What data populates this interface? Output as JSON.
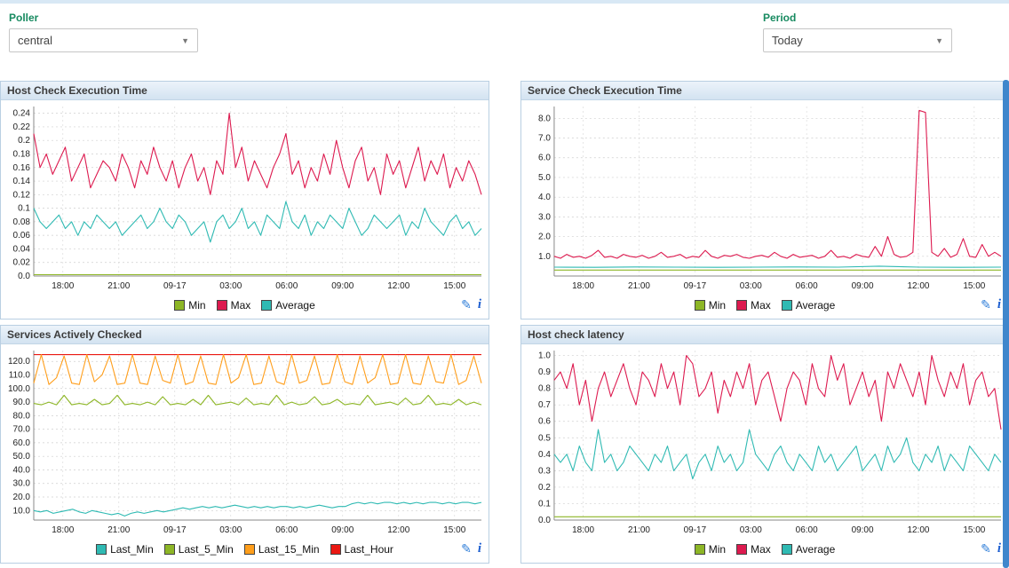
{
  "filters": {
    "poller_label": "Poller",
    "poller_value": "central",
    "period_label": "Period",
    "period_value": "Today"
  },
  "icons": {
    "edit": "✎",
    "info": "i"
  },
  "xticks": [
    {
      "pos": 0.065,
      "l": "18:00"
    },
    {
      "pos": 0.19,
      "l": "21:00"
    },
    {
      "pos": 0.315,
      "l": "09-17"
    },
    {
      "pos": 0.44,
      "l": "03:00"
    },
    {
      "pos": 0.565,
      "l": "06:00"
    },
    {
      "pos": 0.69,
      "l": "09:00"
    },
    {
      "pos": 0.815,
      "l": "12:00"
    },
    {
      "pos": 0.94,
      "l": "15:00"
    }
  ],
  "charts": [
    {
      "title": "Host Check Execution Time",
      "chart_data": {
        "type": "line",
        "ylim": [
          0,
          0.25
        ],
        "yticks": [
          {
            "v": 0,
            "l": "0.0"
          },
          {
            "v": 0.02,
            "l": "0.02"
          },
          {
            "v": 0.04,
            "l": "0.04"
          },
          {
            "v": 0.06,
            "l": "0.06"
          },
          {
            "v": 0.08,
            "l": "0.08"
          },
          {
            "v": 0.1,
            "l": "0.1"
          },
          {
            "v": 0.12,
            "l": "0.12"
          },
          {
            "v": 0.14,
            "l": "0.14"
          },
          {
            "v": 0.16,
            "l": "0.16"
          },
          {
            "v": 0.18,
            "l": "0.18"
          },
          {
            "v": 0.2,
            "l": "0.2"
          },
          {
            "v": 0.22,
            "l": "0.22"
          },
          {
            "v": 0.24,
            "l": "0.24"
          }
        ],
        "series": [
          {
            "name": "Min",
            "color": "#8db626",
            "values": [
              0.002,
              0.002
            ]
          },
          {
            "name": "Max",
            "color": "#dd1a4f",
            "values": [
              0.21,
              0.16,
              0.18,
              0.15,
              0.17,
              0.19,
              0.14,
              0.16,
              0.18,
              0.13,
              0.15,
              0.17,
              0.16,
              0.14,
              0.18,
              0.16,
              0.13,
              0.17,
              0.15,
              0.19,
              0.16,
              0.14,
              0.17,
              0.13,
              0.16,
              0.18,
              0.14,
              0.16,
              0.12,
              0.17,
              0.15,
              0.24,
              0.16,
              0.19,
              0.14,
              0.17,
              0.15,
              0.13,
              0.16,
              0.18,
              0.21,
              0.15,
              0.17,
              0.13,
              0.16,
              0.14,
              0.18,
              0.15,
              0.2,
              0.16,
              0.13,
              0.17,
              0.19,
              0.14,
              0.16,
              0.12,
              0.18,
              0.15,
              0.17,
              0.13,
              0.16,
              0.19,
              0.14,
              0.17,
              0.15,
              0.18,
              0.13,
              0.16,
              0.14,
              0.17,
              0.15,
              0.12
            ]
          },
          {
            "name": "Average",
            "color": "#2fbab3",
            "values": [
              0.1,
              0.08,
              0.07,
              0.08,
              0.09,
              0.07,
              0.08,
              0.06,
              0.08,
              0.07,
              0.09,
              0.08,
              0.07,
              0.08,
              0.06,
              0.07,
              0.08,
              0.09,
              0.07,
              0.08,
              0.1,
              0.08,
              0.07,
              0.09,
              0.08,
              0.06,
              0.07,
              0.08,
              0.05,
              0.08,
              0.09,
              0.07,
              0.08,
              0.1,
              0.07,
              0.08,
              0.06,
              0.09,
              0.08,
              0.07,
              0.11,
              0.08,
              0.07,
              0.09,
              0.06,
              0.08,
              0.07,
              0.09,
              0.08,
              0.07,
              0.1,
              0.08,
              0.06,
              0.07,
              0.09,
              0.08,
              0.07,
              0.08,
              0.09,
              0.06,
              0.08,
              0.07,
              0.1,
              0.08,
              0.07,
              0.06,
              0.08,
              0.09,
              0.07,
              0.08,
              0.06,
              0.07
            ]
          }
        ],
        "legend": [
          {
            "label": "Min",
            "color": "#8db626"
          },
          {
            "label": "Max",
            "color": "#dd1a4f"
          },
          {
            "label": "Average",
            "color": "#2fbab3"
          }
        ]
      }
    },
    {
      "title": "Service Check Execution Time",
      "chart_data": {
        "type": "line",
        "ylim": [
          0,
          8.6
        ],
        "yticks": [
          {
            "v": 1,
            "l": "1.0"
          },
          {
            "v": 2,
            "l": "2.0"
          },
          {
            "v": 3,
            "l": "3.0"
          },
          {
            "v": 4,
            "l": "4.0"
          },
          {
            "v": 5,
            "l": "5.0"
          },
          {
            "v": 6,
            "l": "6.0"
          },
          {
            "v": 7,
            "l": "7.0"
          },
          {
            "v": 8,
            "l": "8.0"
          }
        ],
        "series": [
          {
            "name": "Min",
            "color": "#8db626",
            "values": [
              0.3,
              0.3
            ]
          },
          {
            "name": "Average",
            "color": "#2fbab3",
            "values": [
              0.45,
              0.44,
              0.46,
              0.45,
              0.44,
              0.45,
              0.46,
              0.45,
              0.5,
              0.45,
              0.44,
              0.45
            ]
          },
          {
            "name": "Max",
            "color": "#dd1a4f",
            "values": [
              1.0,
              0.9,
              1.1,
              0.95,
              1.0,
              0.9,
              1.05,
              1.3,
              0.95,
              1.0,
              0.9,
              1.1,
              1.0,
              0.95,
              1.05,
              0.9,
              1.0,
              1.2,
              0.95,
              1.0,
              1.1,
              0.9,
              1.0,
              0.95,
              1.3,
              1.0,
              0.9,
              1.05,
              1.0,
              1.1,
              0.95,
              0.9,
              1.0,
              1.05,
              0.95,
              1.2,
              1.0,
              0.9,
              1.1,
              0.95,
              1.0,
              1.05,
              0.9,
              1.0,
              1.3,
              0.95,
              1.0,
              0.9,
              1.1,
              1.0,
              0.95,
              1.5,
              1.0,
              2.0,
              1.1,
              0.95,
              1.0,
              1.2,
              8.4,
              8.3,
              1.2,
              1.0,
              1.4,
              0.95,
              1.1,
              1.9,
              1.0,
              0.95,
              1.6,
              1.0,
              1.2,
              1.0
            ]
          }
        ],
        "legend": [
          {
            "label": "Min",
            "color": "#8db626"
          },
          {
            "label": "Max",
            "color": "#dd1a4f"
          },
          {
            "label": "Average",
            "color": "#2fbab3"
          }
        ]
      }
    },
    {
      "title": "Services Actively Checked",
      "chart_data": {
        "type": "line",
        "ylim": [
          3,
          128
        ],
        "yticks": [
          {
            "v": 10,
            "l": "10.0"
          },
          {
            "v": 20,
            "l": "20.0"
          },
          {
            "v": 30,
            "l": "30.0"
          },
          {
            "v": 40,
            "l": "40.0"
          },
          {
            "v": 50,
            "l": "50.0"
          },
          {
            "v": 60,
            "l": "60.0"
          },
          {
            "v": 70,
            "l": "70.0"
          },
          {
            "v": 80,
            "l": "80.0"
          },
          {
            "v": 90,
            "l": "90.0"
          },
          {
            "v": 100,
            "l": "100.0"
          },
          {
            "v": 110,
            "l": "110.0"
          },
          {
            "v": 120,
            "l": "120.0"
          }
        ],
        "series": [
          {
            "name": "Last_Hour",
            "color": "#ea1812",
            "values": [
              125,
              125
            ]
          },
          {
            "name": "Last_15_Min",
            "color": "#ff9e1b",
            "values": [
              104,
              125,
              103,
              108,
              124,
              104,
              103,
              125,
              105,
              110,
              124,
              103,
              104,
              125,
              104,
              103,
              124,
              106,
              104,
              125,
              103,
              105,
              124,
              104,
              103,
              125,
              104,
              108,
              125,
              103,
              104,
              124,
              105,
              103,
              125,
              104,
              106,
              124,
              103,
              104,
              125,
              105,
              103,
              124,
              104,
              108,
              125,
              103,
              104,
              125,
              104,
              103,
              124,
              105,
              104,
              125,
              103,
              106,
              124,
              104
            ]
          },
          {
            "name": "Last_5_Min",
            "color": "#8db626",
            "values": [
              89,
              88,
              90,
              88,
              95,
              88,
              89,
              88,
              92,
              88,
              89,
              95,
              88,
              89,
              88,
              90,
              88,
              94,
              88,
              89,
              88,
              92,
              88,
              95,
              88,
              89,
              90,
              88,
              93,
              88,
              89,
              88,
              95,
              88,
              90,
              88,
              89,
              94,
              88,
              89,
              92,
              88,
              89,
              88,
              95,
              88,
              89,
              90,
              88,
              93,
              88,
              89,
              95,
              88,
              89,
              88,
              92,
              88,
              90,
              88
            ]
          },
          {
            "name": "Last_Min",
            "color": "#2fbab3",
            "values": [
              10,
              9,
              10,
              8,
              9,
              10,
              11,
              9,
              8,
              10,
              9,
              8,
              7,
              8,
              6,
              8,
              9,
              8,
              9,
              10,
              9,
              10,
              11,
              12,
              11,
              12,
              13,
              12,
              13,
              12,
              13,
              14,
              13,
              12,
              13,
              12,
              13,
              12,
              13,
              13,
              12,
              13,
              12,
              13,
              14,
              13,
              12,
              13,
              13,
              15,
              16,
              15,
              16,
              15,
              16,
              16,
              15,
              16,
              15,
              16,
              15,
              16,
              16,
              15,
              16,
              15,
              16,
              16,
              15,
              16
            ]
          }
        ],
        "legend": [
          {
            "label": "Last_Min",
            "color": "#2fbab3"
          },
          {
            "label": "Last_5_Min",
            "color": "#8db626"
          },
          {
            "label": "Last_15_Min",
            "color": "#ff9e1b"
          },
          {
            "label": "Last_Hour",
            "color": "#ea1812"
          }
        ]
      }
    },
    {
      "title": "Host check latency",
      "chart_data": {
        "type": "line",
        "ylim": [
          0,
          1.03
        ],
        "yticks": [
          {
            "v": 0,
            "l": "0.0"
          },
          {
            "v": 0.1,
            "l": "0.1"
          },
          {
            "v": 0.2,
            "l": "0.2"
          },
          {
            "v": 0.3,
            "l": "0.3"
          },
          {
            "v": 0.4,
            "l": "0.4"
          },
          {
            "v": 0.5,
            "l": "0.5"
          },
          {
            "v": 0.6,
            "l": "0.6"
          },
          {
            "v": 0.7,
            "l": "0.7"
          },
          {
            "v": 0.8,
            "l": "0.8"
          },
          {
            "v": 0.9,
            "l": "0.9"
          },
          {
            "v": 1.0,
            "l": "1.0"
          }
        ],
        "series": [
          {
            "name": "Min",
            "color": "#8db626",
            "values": [
              0.02,
              0.02
            ]
          },
          {
            "name": "Max",
            "color": "#dd1a4f",
            "values": [
              0.85,
              0.9,
              0.8,
              0.95,
              0.7,
              0.85,
              0.6,
              0.8,
              0.9,
              0.75,
              0.85,
              0.95,
              0.8,
              0.7,
              0.9,
              0.85,
              0.75,
              0.95,
              0.8,
              0.9,
              0.7,
              1.0,
              0.95,
              0.75,
              0.8,
              0.9,
              0.65,
              0.85,
              0.75,
              0.9,
              0.8,
              0.95,
              0.7,
              0.85,
              0.9,
              0.75,
              0.6,
              0.8,
              0.9,
              0.85,
              0.7,
              0.95,
              0.8,
              0.75,
              1.0,
              0.85,
              0.95,
              0.7,
              0.8,
              0.9,
              0.75,
              0.85,
              0.6,
              0.9,
              0.8,
              0.95,
              0.85,
              0.75,
              0.9,
              0.7,
              1.0,
              0.85,
              0.75,
              0.9,
              0.8,
              0.95,
              0.7,
              0.85,
              0.9,
              0.75,
              0.8,
              0.55
            ]
          },
          {
            "name": "Average",
            "color": "#2fbab3",
            "values": [
              0.4,
              0.35,
              0.4,
              0.3,
              0.45,
              0.35,
              0.3,
              0.55,
              0.35,
              0.4,
              0.3,
              0.35,
              0.45,
              0.4,
              0.35,
              0.3,
              0.4,
              0.35,
              0.45,
              0.3,
              0.35,
              0.4,
              0.25,
              0.35,
              0.4,
              0.3,
              0.45,
              0.35,
              0.4,
              0.3,
              0.35,
              0.55,
              0.4,
              0.35,
              0.3,
              0.4,
              0.45,
              0.35,
              0.3,
              0.4,
              0.35,
              0.3,
              0.45,
              0.35,
              0.4,
              0.3,
              0.35,
              0.4,
              0.45,
              0.3,
              0.35,
              0.4,
              0.3,
              0.45,
              0.35,
              0.4,
              0.5,
              0.35,
              0.3,
              0.4,
              0.35,
              0.45,
              0.3,
              0.4,
              0.35,
              0.3,
              0.45,
              0.4,
              0.35,
              0.3,
              0.4,
              0.35
            ]
          }
        ],
        "legend": [
          {
            "label": "Min",
            "color": "#8db626"
          },
          {
            "label": "Max",
            "color": "#dd1a4f"
          },
          {
            "label": "Average",
            "color": "#2fbab3"
          }
        ]
      }
    }
  ]
}
